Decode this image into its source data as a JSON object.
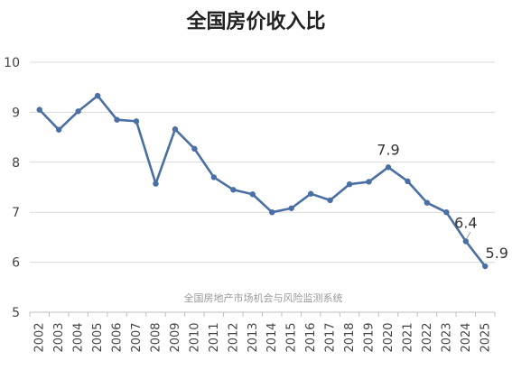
{
  "chart_data": {
    "type": "line",
    "title": "全国房价收入比",
    "xlabel": "",
    "ylabel": "",
    "ylim": [
      5,
      10
    ],
    "yticks": [
      5,
      6,
      7,
      8,
      9,
      10
    ],
    "grid": true,
    "x": [
      "2002",
      "2003",
      "2004",
      "2005",
      "2006",
      "2007",
      "2008",
      "2009",
      "2010",
      "2011",
      "2012",
      "2013",
      "2014",
      "2015",
      "2016",
      "2017",
      "2018",
      "2019",
      "2020",
      "2021",
      "2022",
      "2023",
      "2024",
      "2025"
    ],
    "series": [
      {
        "color": "#4a6fa5",
        "values": [
          9.05,
          8.65,
          9.02,
          9.33,
          8.85,
          8.82,
          7.57,
          8.66,
          8.27,
          7.7,
          7.45,
          7.36,
          7.0,
          7.08,
          7.37,
          7.24,
          7.56,
          7.61,
          7.9,
          7.62,
          7.19,
          7.0,
          6.42,
          5.92
        ]
      }
    ],
    "annotations": [
      {
        "index": 18,
        "text": "7.9"
      },
      {
        "index": 22,
        "text": "6.4"
      },
      {
        "index": 23,
        "text": "5.9"
      }
    ],
    "watermark": "全国房地产市场机会与风险监测系统"
  }
}
